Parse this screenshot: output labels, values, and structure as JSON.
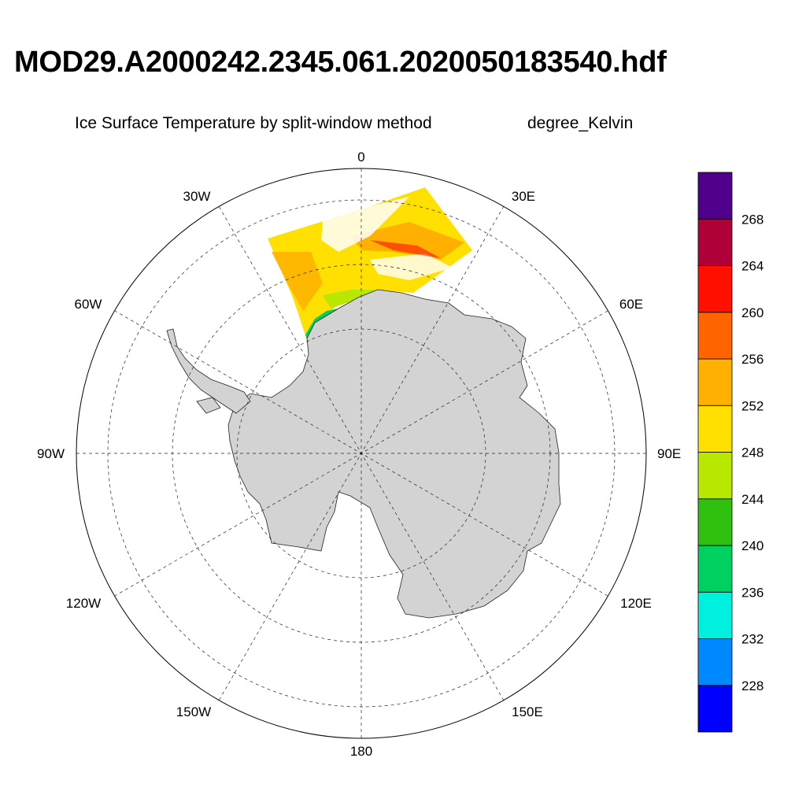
{
  "title": "MOD29.A2000242.2345.061.2020050183540.hdf",
  "subtitle": "Ice Surface Temperature by split-window method",
  "units": "degree_Kelvin",
  "map": {
    "projection": "south-polar stereographic",
    "grid": true,
    "longitude_labels": [
      {
        "lon": 0,
        "text": "0"
      },
      {
        "lon": 30,
        "text": "30E"
      },
      {
        "lon": 60,
        "text": "60E"
      },
      {
        "lon": 90,
        "text": "90E"
      },
      {
        "lon": 120,
        "text": "120E"
      },
      {
        "lon": 150,
        "text": "150E"
      },
      {
        "lon": 180,
        "text": "180"
      },
      {
        "lon": -150,
        "text": "150W"
      },
      {
        "lon": -120,
        "text": "120W"
      },
      {
        "lon": -90,
        "text": "90W"
      },
      {
        "lon": -60,
        "text": "60W"
      },
      {
        "lon": -30,
        "text": "30W"
      }
    ],
    "land_color": "#d3d3d3"
  },
  "colorbar": {
    "levels": [
      228,
      232,
      236,
      240,
      244,
      248,
      252,
      256,
      260,
      264,
      268
    ],
    "colors": [
      "#0000ff",
      "#0088ff",
      "#00f0e0",
      "#00d060",
      "#30c010",
      "#b8e800",
      "#ffe000",
      "#ffb000",
      "#ff6400",
      "#ff1000",
      "#b00038",
      "#50008a"
    ]
  }
}
